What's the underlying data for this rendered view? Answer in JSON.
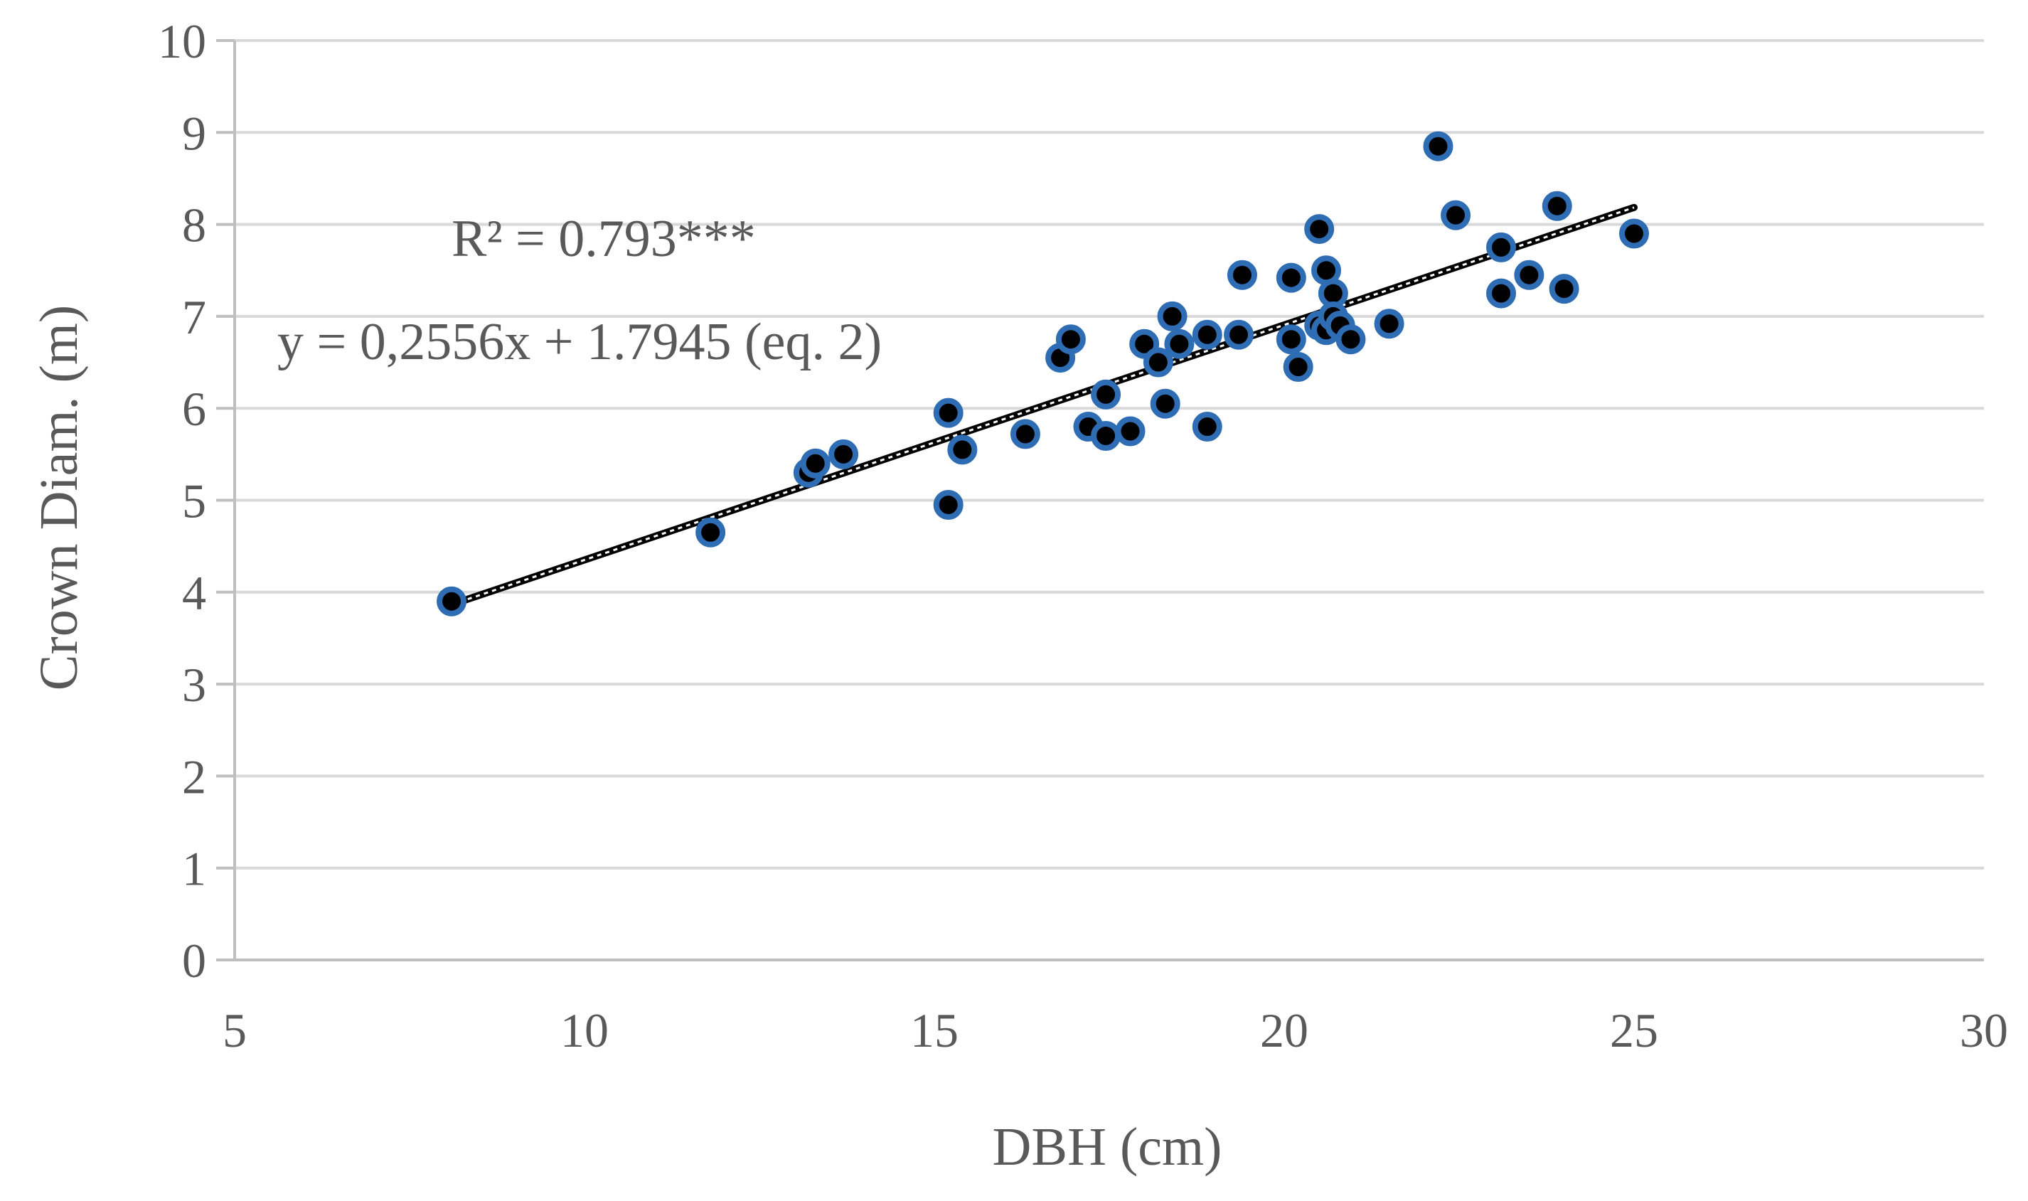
{
  "chart_data": {
    "type": "scatter",
    "title": "",
    "xlabel": "DBH (cm)",
    "ylabel": "Crown Diam. (m)",
    "xlim": [
      5,
      30
    ],
    "ylim": [
      0,
      10
    ],
    "x_ticks": [
      "5",
      "10",
      "15",
      "20",
      "25",
      "30"
    ],
    "y_ticks": [
      "0",
      "1",
      "2",
      "3",
      "4",
      "5",
      "6",
      "7",
      "8",
      "9",
      "10"
    ],
    "grid": "horizontal",
    "series": [
      {
        "points": [
          [
            8.1,
            3.9
          ],
          [
            11.8,
            4.65
          ],
          [
            13.2,
            5.3
          ],
          [
            13.3,
            5.4
          ],
          [
            13.7,
            5.5
          ],
          [
            15.2,
            5.95
          ],
          [
            15.2,
            4.95
          ],
          [
            15.4,
            5.55
          ],
          [
            16.3,
            5.72
          ],
          [
            16.8,
            6.55
          ],
          [
            16.95,
            6.75
          ],
          [
            17.2,
            5.8
          ],
          [
            17.45,
            6.15
          ],
          [
            17.45,
            5.7
          ],
          [
            17.8,
            5.75
          ],
          [
            18.0,
            6.7
          ],
          [
            18.2,
            6.5
          ],
          [
            18.3,
            6.05
          ],
          [
            18.4,
            7.0
          ],
          [
            18.5,
            6.7
          ],
          [
            18.9,
            6.8
          ],
          [
            18.9,
            5.8
          ],
          [
            19.35,
            6.8
          ],
          [
            19.4,
            7.45
          ],
          [
            20.1,
            7.42
          ],
          [
            20.1,
            6.75
          ],
          [
            20.2,
            6.45
          ],
          [
            20.5,
            7.95
          ],
          [
            20.5,
            6.9
          ],
          [
            20.6,
            7.5
          ],
          [
            20.6,
            6.85
          ],
          [
            20.7,
            7.25
          ],
          [
            20.7,
            7.0
          ],
          [
            20.8,
            6.9
          ],
          [
            20.95,
            6.75
          ],
          [
            21.5,
            6.92
          ],
          [
            22.2,
            8.85
          ],
          [
            22.45,
            8.1
          ],
          [
            23.1,
            7.75
          ],
          [
            23.1,
            7.25
          ],
          [
            23.5,
            7.45
          ],
          [
            23.9,
            8.2
          ],
          [
            24.0,
            7.3
          ],
          [
            25.0,
            7.9
          ]
        ]
      }
    ],
    "trendline": {
      "slope": 0.2556,
      "intercept": 1.7945,
      "x_range": [
        8.1,
        25.0
      ]
    },
    "annotations": {
      "r_squared": "R² = 0.793***",
      "equation": "y = 0,2556x + 1.7945 (eq. 2)"
    }
  }
}
